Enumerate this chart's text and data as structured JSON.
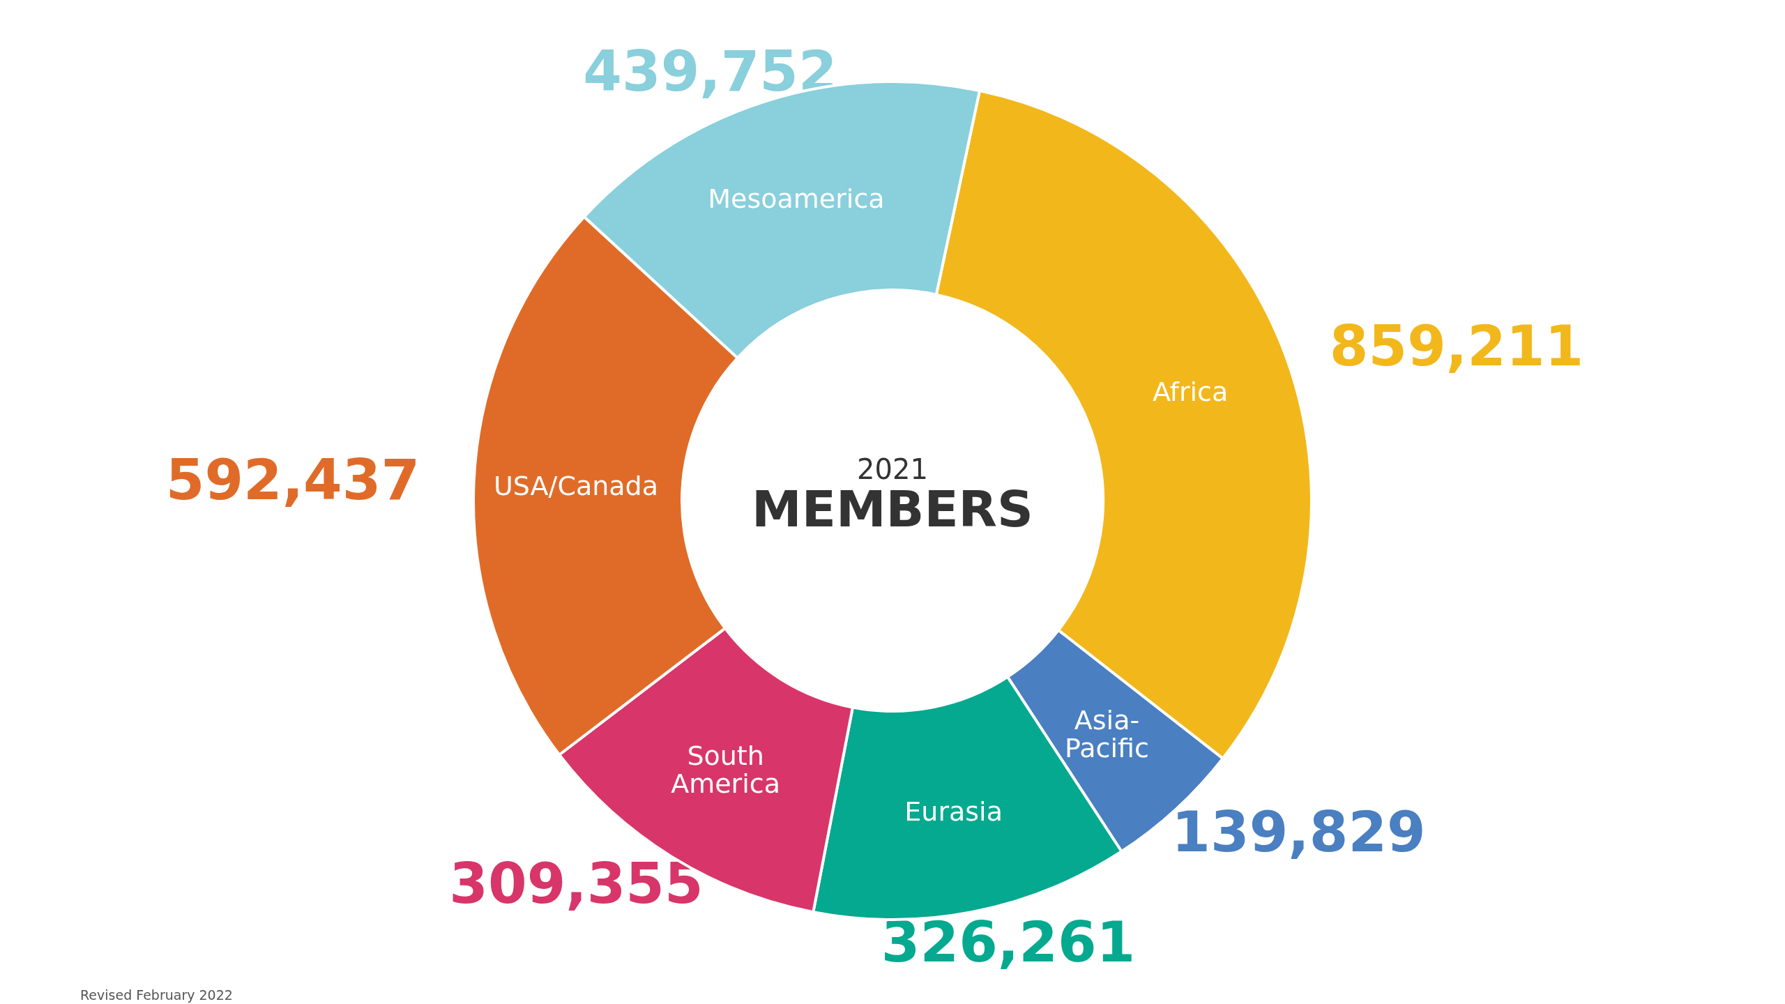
{
  "chart_data": {
    "type": "donut",
    "title": "MEMBERS",
    "subtitle": "2021",
    "categories": [
      "Africa",
      "Asia-Pacific",
      "Eurasia",
      "South America",
      "USA/Canada",
      "Mesoamerica"
    ],
    "values": [
      859211,
      139829,
      326261,
      309355,
      592437,
      439752
    ],
    "colors": [
      "#f2b71a",
      "#4a7fc1",
      "#05a98f",
      "#d8356a",
      "#e06b28",
      "#89cfdc"
    ],
    "value_labels": [
      "859,211",
      "139,829",
      "326,261",
      "309,355",
      "592,437",
      "439,752"
    ],
    "annotations": [
      "Revised February 2022"
    ]
  }
}
